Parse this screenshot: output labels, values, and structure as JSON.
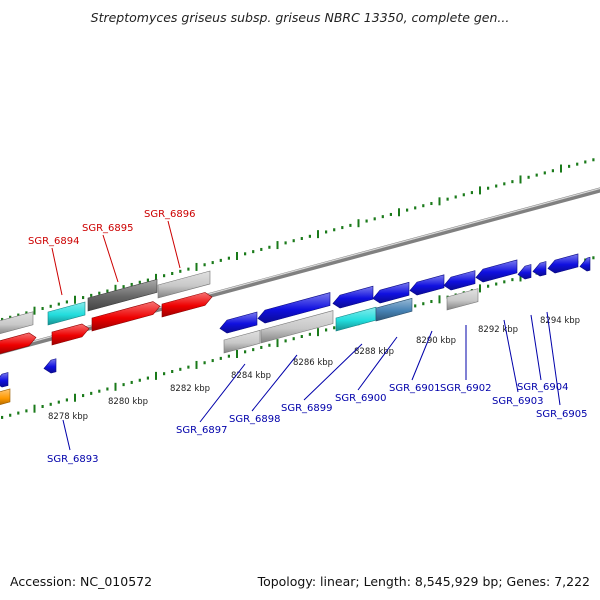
{
  "title": "Streptomyces griseus subsp. griseus NBRC 13350, complete gen...",
  "footer": {
    "accession": "Accession: NC_010572",
    "summary": "Topology: linear; Length: 8,545,929 bp; Genes: 7,222"
  },
  "colors": {
    "axis": "#808080",
    "ticks": "#1a7a1a",
    "label_red": "#cc0000",
    "label_blue": "#0000aa",
    "blue": "#1010e0",
    "red": "#ee0000",
    "gray": "#c8c8c8",
    "dark_gray": "#666666",
    "cyan": "#22dddd",
    "steel_blue": "#4682b4",
    "orange": "#ff9900"
  },
  "ruler": [
    "8278 kbp",
    "8280 kbp",
    "8282 kbp",
    "8284 kbp",
    "8286 kbp",
    "8288 kbp",
    "8290 kbp",
    "8292 kbp",
    "8294 kbp"
  ],
  "top_labels": [
    "SGR_6894",
    "SGR_6895",
    "SGR_6896"
  ],
  "bottom_labels": [
    "SGR_6893",
    "SGR_6897",
    "SGR_6898",
    "SGR_6899",
    "SGR_6900",
    "SGR_6901",
    "SGR_6902",
    "SGR_6903",
    "SGR_6904",
    "SGR_6905"
  ]
}
